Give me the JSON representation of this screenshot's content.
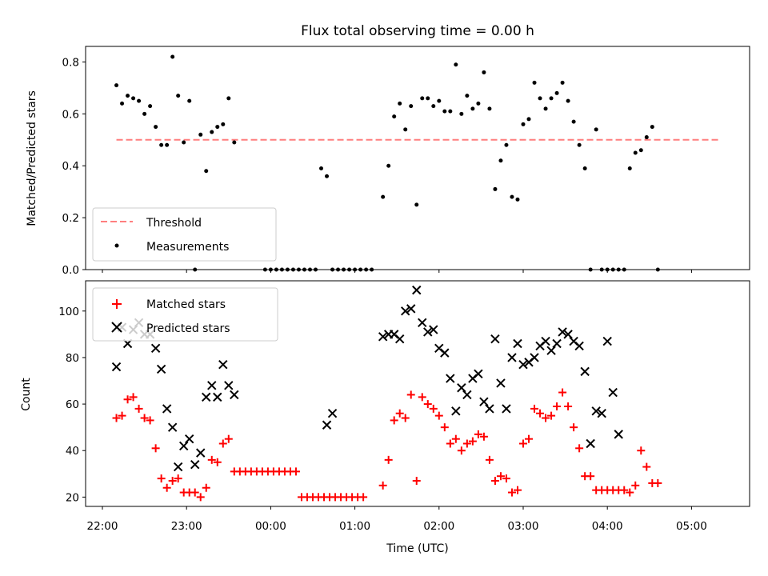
{
  "chart_data": [
    {
      "type": "scatter",
      "title": "Flux total observing time = 0.00 h",
      "xlabel": "",
      "ylabel": "Matched/Predicted stars",
      "ylim": [
        0,
        0.86
      ],
      "yticks": [
        0,
        0.2,
        0.4,
        0.6,
        0.8
      ],
      "ytick_labels": [
        "0.0",
        "0.2",
        "0.4",
        "0.6",
        "0.8"
      ],
      "legend": {
        "placement": "lower-left",
        "entries": [
          "Threshold",
          "Measurements"
        ]
      },
      "series": [
        {
          "name": "Threshold",
          "style": "dashed-line",
          "color": "#ff7f7f",
          "y": 0.5,
          "x_range": [
            "22:10",
            "05:20"
          ]
        },
        {
          "name": "Measurements",
          "style": "dot",
          "color": "#000000",
          "points": [
            [
              "22:10",
              0.71
            ],
            [
              "22:14",
              0.64
            ],
            [
              "22:18",
              0.67
            ],
            [
              "22:22",
              0.66
            ],
            [
              "22:26",
              0.65
            ],
            [
              "22:30",
              0.6
            ],
            [
              "22:34",
              0.63
            ],
            [
              "22:38",
              0.55
            ],
            [
              "22:42",
              0.48
            ],
            [
              "22:46",
              0.48
            ],
            [
              "22:50",
              0.82
            ],
            [
              "22:54",
              0.67
            ],
            [
              "22:58",
              0.49
            ],
            [
              "23:02",
              0.65
            ],
            [
              "23:06",
              0.0
            ],
            [
              "23:10",
              0.52
            ],
            [
              "23:14",
              0.38
            ],
            [
              "23:18",
              0.53
            ],
            [
              "23:22",
              0.55
            ],
            [
              "23:26",
              0.56
            ],
            [
              "23:30",
              0.66
            ],
            [
              "23:34",
              0.49
            ],
            [
              "23:56",
              0.0
            ],
            [
              "23:60",
              0.0
            ],
            [
              "00:04",
              0.0
            ],
            [
              "00:08",
              0.0
            ],
            [
              "00:12",
              0.0
            ],
            [
              "00:16",
              0.0
            ],
            [
              "00:20",
              0.0
            ],
            [
              "00:24",
              0.0
            ],
            [
              "00:28",
              0.0
            ],
            [
              "00:32",
              0.0
            ],
            [
              "00:36",
              0.39
            ],
            [
              "00:40",
              0.36
            ],
            [
              "00:44",
              0.0
            ],
            [
              "00:48",
              0.0
            ],
            [
              "00:52",
              0.0
            ],
            [
              "00:56",
              0.0
            ],
            [
              "01:00",
              0.0
            ],
            [
              "01:04",
              0.0
            ],
            [
              "01:08",
              0.0
            ],
            [
              "01:12",
              0.0
            ],
            [
              "01:20",
              0.28
            ],
            [
              "01:24",
              0.4
            ],
            [
              "01:28",
              0.59
            ],
            [
              "01:32",
              0.64
            ],
            [
              "01:36",
              0.54
            ],
            [
              "01:40",
              0.63
            ],
            [
              "01:44",
              0.25
            ],
            [
              "01:48",
              0.66
            ],
            [
              "01:52",
              0.66
            ],
            [
              "01:56",
              0.63
            ],
            [
              "02:00",
              0.65
            ],
            [
              "02:04",
              0.61
            ],
            [
              "02:08",
              0.61
            ],
            [
              "02:12",
              0.79
            ],
            [
              "02:16",
              0.6
            ],
            [
              "02:20",
              0.67
            ],
            [
              "02:24",
              0.62
            ],
            [
              "02:28",
              0.64
            ],
            [
              "02:32",
              0.76
            ],
            [
              "02:36",
              0.62
            ],
            [
              "02:40",
              0.31
            ],
            [
              "02:44",
              0.42
            ],
            [
              "02:48",
              0.48
            ],
            [
              "02:52",
              0.28
            ],
            [
              "02:56",
              0.27
            ],
            [
              "03:00",
              0.56
            ],
            [
              "03:04",
              0.58
            ],
            [
              "03:08",
              0.72
            ],
            [
              "03:12",
              0.66
            ],
            [
              "03:16",
              0.62
            ],
            [
              "03:20",
              0.66
            ],
            [
              "03:24",
              0.68
            ],
            [
              "03:28",
              0.72
            ],
            [
              "03:32",
              0.65
            ],
            [
              "03:36",
              0.57
            ],
            [
              "03:40",
              0.48
            ],
            [
              "03:44",
              0.39
            ],
            [
              "03:48",
              0.0
            ],
            [
              "03:52",
              0.54
            ],
            [
              "03:56",
              0.0
            ],
            [
              "04:00",
              0.0
            ],
            [
              "04:04",
              0.0
            ],
            [
              "04:08",
              0.0
            ],
            [
              "04:12",
              0.0
            ],
            [
              "04:16",
              0.39
            ],
            [
              "04:20",
              0.45
            ],
            [
              "04:24",
              0.46
            ],
            [
              "04:28",
              0.51
            ],
            [
              "04:32",
              0.55
            ],
            [
              "04:36",
              0.0
            ]
          ]
        }
      ]
    },
    {
      "type": "scatter",
      "title": "",
      "xlabel": "Time (UTC)",
      "ylabel": "Count",
      "ylim": [
        16,
        113
      ],
      "yticks": [
        20,
        40,
        60,
        80,
        100
      ],
      "ytick_labels": [
        "20",
        "40",
        "60",
        "80",
        "100"
      ],
      "xticks": [
        "22:00",
        "23:00",
        "00:00",
        "01:00",
        "02:00",
        "03:00",
        "04:00",
        "05:00"
      ],
      "legend": {
        "placement": "upper-left",
        "entries": [
          "Matched stars",
          "Predicted stars"
        ]
      },
      "series": [
        {
          "name": "Matched stars",
          "style": "plus",
          "color": "#ff0000",
          "points": [
            [
              "22:10",
              54
            ],
            [
              "22:14",
              55
            ],
            [
              "22:18",
              62
            ],
            [
              "22:22",
              63
            ],
            [
              "22:26",
              58
            ],
            [
              "22:30",
              54
            ],
            [
              "22:34",
              53
            ],
            [
              "22:38",
              41
            ],
            [
              "22:42",
              28
            ],
            [
              "22:46",
              24
            ],
            [
              "22:50",
              27
            ],
            [
              "22:54",
              28
            ],
            [
              "22:58",
              22
            ],
            [
              "23:02",
              22
            ],
            [
              "23:06",
              22
            ],
            [
              "23:10",
              20
            ],
            [
              "23:14",
              24
            ],
            [
              "23:18",
              36
            ],
            [
              "23:22",
              35
            ],
            [
              "23:26",
              43
            ],
            [
              "23:30",
              45
            ],
            [
              "23:34",
              31
            ],
            [
              "23:38",
              31
            ],
            [
              "23:42",
              31
            ],
            [
              "23:46",
              31
            ],
            [
              "23:50",
              31
            ],
            [
              "23:54",
              31
            ],
            [
              "23:58",
              31
            ],
            [
              "00:02",
              31
            ],
            [
              "00:06",
              31
            ],
            [
              "00:10",
              31
            ],
            [
              "00:14",
              31
            ],
            [
              "00:18",
              31
            ],
            [
              "00:22",
              20
            ],
            [
              "00:26",
              20
            ],
            [
              "00:30",
              20
            ],
            [
              "00:34",
              20
            ],
            [
              "00:38",
              20
            ],
            [
              "00:42",
              20
            ],
            [
              "00:46",
              20
            ],
            [
              "00:50",
              20
            ],
            [
              "00:54",
              20
            ],
            [
              "00:58",
              20
            ],
            [
              "01:02",
              20
            ],
            [
              "01:06",
              20
            ],
            [
              "01:20",
              25
            ],
            [
              "01:24",
              36
            ],
            [
              "01:28",
              53
            ],
            [
              "01:32",
              56
            ],
            [
              "01:36",
              54
            ],
            [
              "01:40",
              64
            ],
            [
              "01:44",
              27
            ],
            [
              "01:48",
              63
            ],
            [
              "01:52",
              60
            ],
            [
              "01:56",
              58
            ],
            [
              "02:00",
              55
            ],
            [
              "02:04",
              50
            ],
            [
              "02:08",
              43
            ],
            [
              "02:12",
              45
            ],
            [
              "02:16",
              40
            ],
            [
              "02:20",
              43
            ],
            [
              "02:24",
              44
            ],
            [
              "02:28",
              47
            ],
            [
              "02:32",
              46
            ],
            [
              "02:36",
              36
            ],
            [
              "02:40",
              27
            ],
            [
              "02:44",
              29
            ],
            [
              "02:48",
              28
            ],
            [
              "02:52",
              22
            ],
            [
              "02:56",
              23
            ],
            [
              "03:00",
              43
            ],
            [
              "03:04",
              45
            ],
            [
              "03:08",
              58
            ],
            [
              "03:12",
              56
            ],
            [
              "03:16",
              54
            ],
            [
              "03:20",
              55
            ],
            [
              "03:24",
              59
            ],
            [
              "03:28",
              65
            ],
            [
              "03:32",
              59
            ],
            [
              "03:36",
              50
            ],
            [
              "03:40",
              41
            ],
            [
              "03:44",
              29
            ],
            [
              "03:48",
              29
            ],
            [
              "03:52",
              23
            ],
            [
              "03:56",
              23
            ],
            [
              "04:00",
              23
            ],
            [
              "04:04",
              23
            ],
            [
              "04:08",
              23
            ],
            [
              "04:12",
              23
            ],
            [
              "04:16",
              22
            ],
            [
              "04:20",
              25
            ],
            [
              "04:24",
              40
            ],
            [
              "04:28",
              33
            ],
            [
              "04:32",
              26
            ],
            [
              "04:36",
              26
            ]
          ]
        },
        {
          "name": "Predicted stars",
          "style": "x",
          "color": "#000000",
          "points": [
            [
              "22:10",
              76
            ],
            [
              "22:14",
              93
            ],
            [
              "22:18",
              86
            ],
            [
              "22:22",
              92
            ],
            [
              "22:26",
              95
            ],
            [
              "22:30",
              90
            ],
            [
              "22:34",
              90
            ],
            [
              "22:38",
              84
            ],
            [
              "22:42",
              75
            ],
            [
              "22:46",
              58
            ],
            [
              "22:50",
              50
            ],
            [
              "22:54",
              33
            ],
            [
              "22:58",
              42
            ],
            [
              "23:02",
              45
            ],
            [
              "23:06",
              34
            ],
            [
              "23:10",
              39
            ],
            [
              "23:14",
              63
            ],
            [
              "23:18",
              68
            ],
            [
              "23:22",
              63
            ],
            [
              "23:26",
              77
            ],
            [
              "23:30",
              68
            ],
            [
              "23:34",
              64
            ],
            [
              "00:40",
              51
            ],
            [
              "00:44",
              56
            ],
            [
              "01:20",
              89
            ],
            [
              "01:24",
              90
            ],
            [
              "01:28",
              90
            ],
            [
              "01:32",
              88
            ],
            [
              "01:36",
              100
            ],
            [
              "01:40",
              101
            ],
            [
              "01:44",
              109
            ],
            [
              "01:48",
              95
            ],
            [
              "01:52",
              91
            ],
            [
              "01:56",
              92
            ],
            [
              "02:00",
              84
            ],
            [
              "02:04",
              82
            ],
            [
              "02:08",
              71
            ],
            [
              "02:12",
              57
            ],
            [
              "02:16",
              67
            ],
            [
              "02:20",
              64
            ],
            [
              "02:24",
              71
            ],
            [
              "02:28",
              73
            ],
            [
              "02:32",
              61
            ],
            [
              "02:36",
              58
            ],
            [
              "02:40",
              88
            ],
            [
              "02:44",
              69
            ],
            [
              "02:48",
              58
            ],
            [
              "02:52",
              80
            ],
            [
              "02:56",
              86
            ],
            [
              "03:00",
              77
            ],
            [
              "03:04",
              78
            ],
            [
              "03:08",
              80
            ],
            [
              "03:12",
              85
            ],
            [
              "03:16",
              87
            ],
            [
              "03:20",
              83
            ],
            [
              "03:24",
              86
            ],
            [
              "03:28",
              91
            ],
            [
              "03:32",
              90
            ],
            [
              "03:36",
              87
            ],
            [
              "03:40",
              85
            ],
            [
              "03:44",
              74
            ],
            [
              "03:48",
              43
            ],
            [
              "03:52",
              57
            ],
            [
              "03:56",
              56
            ],
            [
              "04:00",
              87
            ],
            [
              "04:04",
              65
            ],
            [
              "04:08",
              47
            ]
          ]
        }
      ]
    }
  ]
}
